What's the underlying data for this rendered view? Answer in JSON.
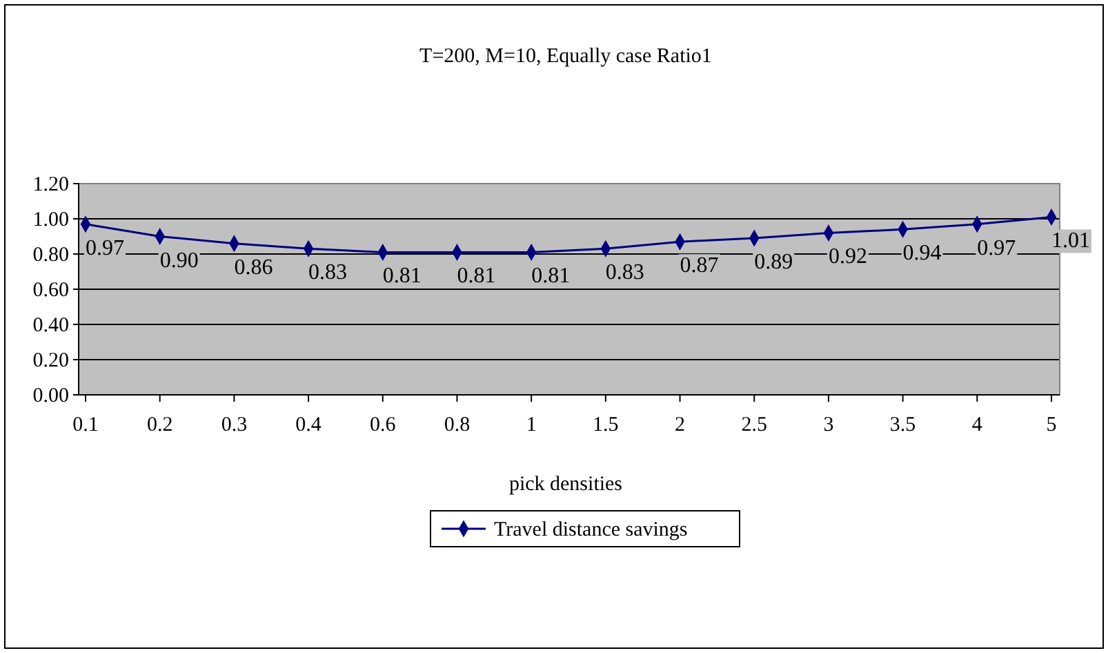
{
  "chart_data": {
    "type": "line",
    "title": "T=200, M=10, Equally case Ratio1",
    "xlabel": "pick densities",
    "categories": [
      "0.1",
      "0.2",
      "0.3",
      "0.4",
      "0.6",
      "0.8",
      "1",
      "1.5",
      "2",
      "2.5",
      "3",
      "3.5",
      "4",
      "5"
    ],
    "series": [
      {
        "name": "Travel distance savings",
        "color": "#000080",
        "values": [
          0.97,
          0.9,
          0.86,
          0.83,
          0.81,
          0.81,
          0.81,
          0.83,
          0.87,
          0.89,
          0.92,
          0.94,
          0.97,
          1.01
        ],
        "value_labels": [
          "0.97",
          "0.90",
          "0.86",
          "0.83",
          "0.81",
          "0.81",
          "0.81",
          "0.83",
          "0.87",
          "0.89",
          "0.92",
          "0.94",
          "0.97",
          "1.01"
        ]
      }
    ],
    "ylim": [
      0,
      1.2
    ],
    "yticks": [
      {
        "value": 0,
        "label": "0.00"
      },
      {
        "value": 0.2,
        "label": "0.20"
      },
      {
        "value": 0.4,
        "label": "0.40"
      },
      {
        "value": 0.6,
        "label": "0.60"
      },
      {
        "value": 0.8,
        "label": "0.80"
      },
      {
        "value": 1,
        "label": "1.00"
      },
      {
        "value": 1.2,
        "label": "1.20"
      }
    ],
    "grid": "y",
    "legend": "bottom",
    "marker": "diamond",
    "line_style": "solid"
  }
}
